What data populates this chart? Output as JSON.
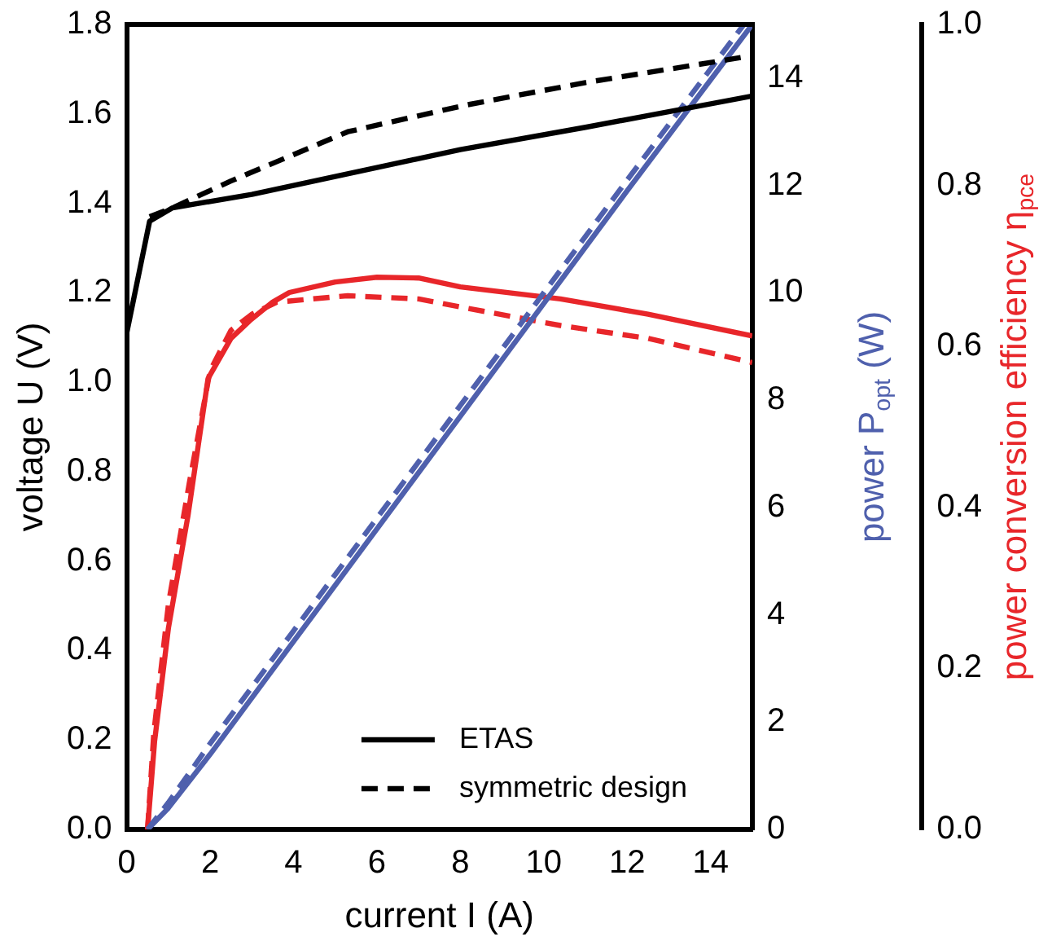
{
  "chart_data": {
    "type": "line",
    "xlabel": "current I (A)",
    "ylabel": "voltage U (V)",
    "y2label": "power P$_{opt}$ (W)",
    "y3label": "power conversion efficiency η$_{pce}$",
    "xlim": [
      0,
      15
    ],
    "xticks": [
      0,
      2,
      4,
      6,
      8,
      10,
      12,
      14
    ],
    "ylim": [
      0,
      1.8
    ],
    "yticks": [
      {
        "value": 0,
        "label": "0.0"
      },
      0.2,
      0.4,
      0.6,
      0.8,
      {
        "value": 1,
        "label": "1.0"
      },
      1.2,
      1.4,
      1.6,
      1.8
    ],
    "y2lim": [
      0,
      15
    ],
    "y2ticks": [
      0,
      2,
      4,
      6,
      8,
      10,
      12,
      14
    ],
    "y3lim": [
      0,
      1
    ],
    "y3ticks": [
      {
        "value": 0,
        "label": "0.0"
      },
      0.2,
      0.4,
      0.6,
      0.8,
      {
        "value": 1,
        "label": "1.0"
      }
    ],
    "grid": false,
    "legend": "bottom right",
    "marker": "none",
    "series": [
      {
        "name": "ETAS",
        "color": "#000000",
        "line_style": "solid",
        "x": [
          0,
          0.55,
          1.1,
          3,
          5,
          8,
          11,
          15
        ],
        "values": [
          1.11,
          1.36,
          1.39,
          1.42,
          1.46,
          1.52,
          1.57,
          1.64
        ]
      },
      {
        "name": "symmetric design",
        "color": "#000000",
        "line_style": "dashed",
        "x": [
          0.55,
          1.1,
          2.5,
          5.3,
          8.15,
          11,
          15
        ],
        "values": [
          1.37,
          1.39,
          1.45,
          1.56,
          1.62,
          1.67,
          1.73
        ]
      },
      {
        "color": "#4f60ad",
        "axis": "y2",
        "line_style": "solid",
        "x": [
          0.5,
          1,
          2,
          4,
          8,
          12,
          15
        ],
        "values": [
          0,
          0.4,
          1.4,
          3.5,
          7.7,
          11.9,
          15
        ]
      },
      {
        "color": "#4f60ad",
        "axis": "y2",
        "line_style": "dashed",
        "x": [
          0.5,
          1,
          2,
          4,
          8,
          12,
          14.8
        ],
        "values": [
          0,
          0.5,
          1.6,
          3.7,
          7.9,
          12.1,
          15
        ]
      },
      {
        "color": "#e8262a",
        "axis": "y3",
        "line_style": "solid",
        "x": [
          0.5,
          0.67,
          1,
          1.47,
          1.95,
          2.5,
          2.95,
          3.5,
          3.9,
          5,
          6,
          7,
          8,
          10.4,
          12.5,
          15
        ],
        "values": [
          0,
          0.11,
          0.25,
          0.39,
          0.56,
          0.61,
          0.632,
          0.655,
          0.667,
          0.68,
          0.686,
          0.685,
          0.674,
          0.659,
          0.64,
          0.613
        ]
      },
      {
        "color": "#e8262a",
        "axis": "y3",
        "line_style": "dashed",
        "x": [
          0.5,
          0.65,
          1,
          1.5,
          2,
          2.5,
          3,
          3.6,
          5.3,
          7,
          8,
          10.4,
          12.5,
          15
        ],
        "values": [
          0,
          0.12,
          0.28,
          0.43,
          0.57,
          0.62,
          0.64,
          0.655,
          0.663,
          0.659,
          0.649,
          0.626,
          0.61,
          0.58
        ]
      }
    ]
  }
}
